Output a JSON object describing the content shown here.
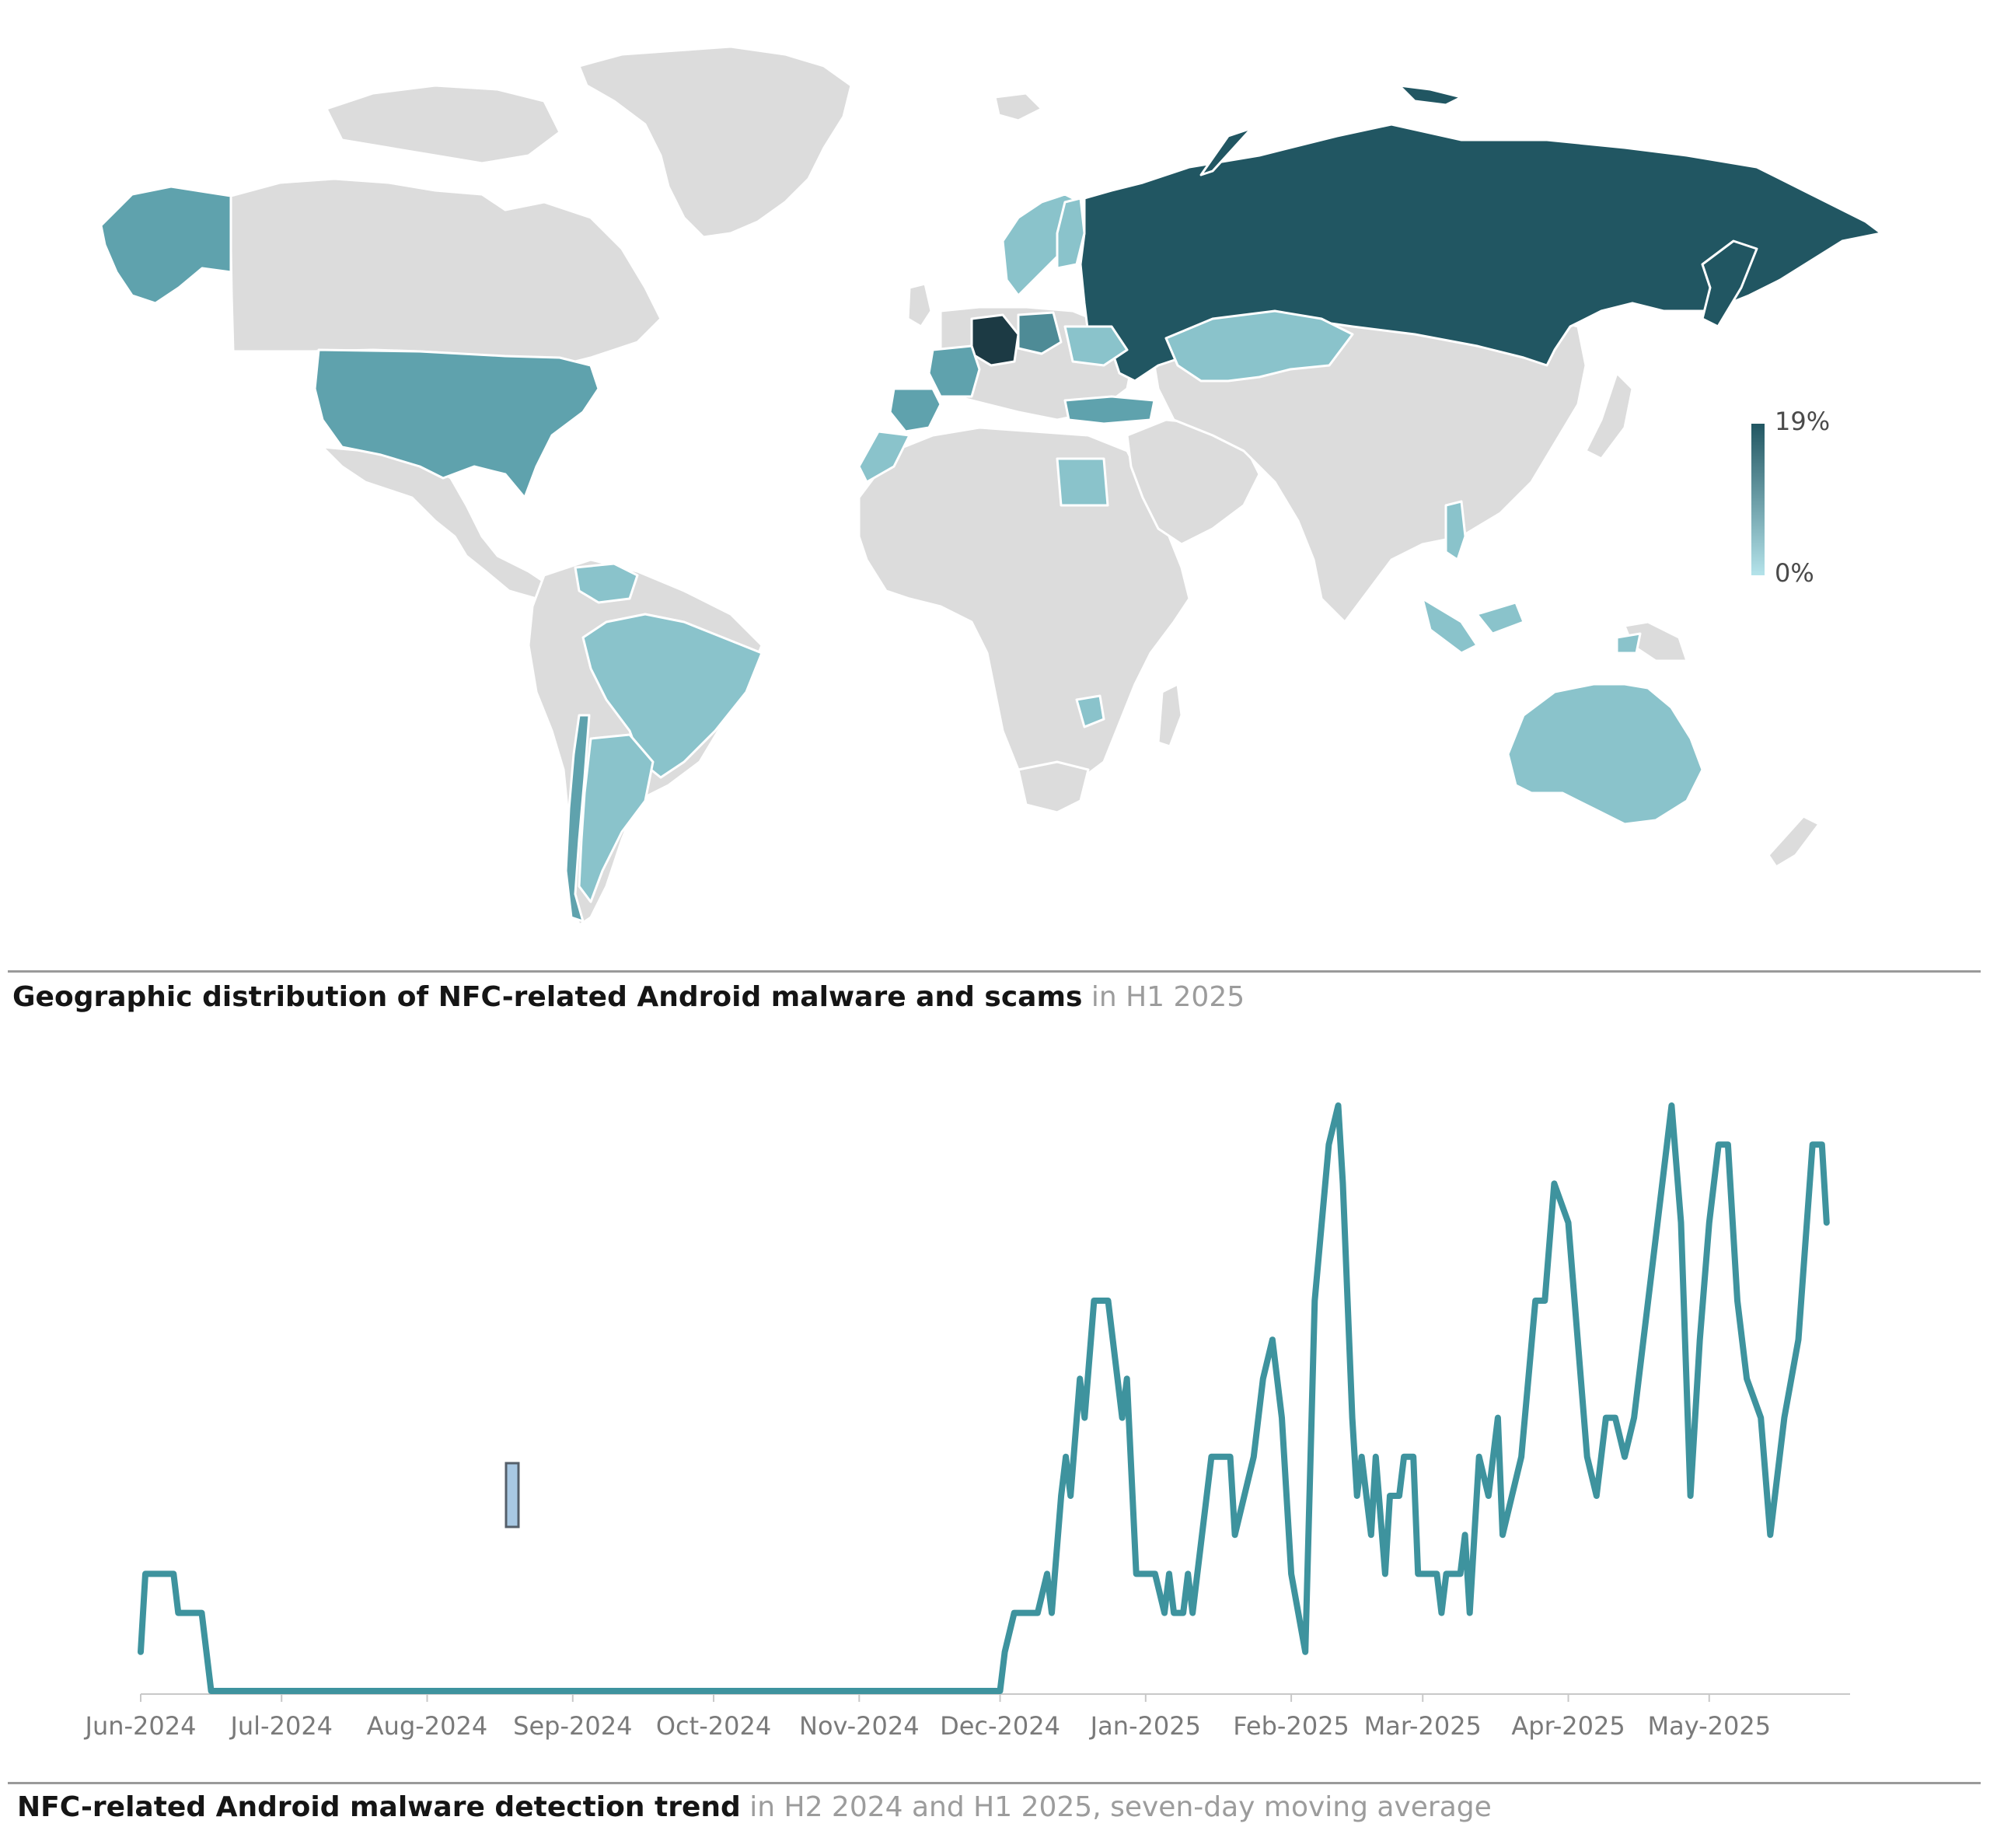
{
  "map": {
    "caption_bold": "Geographic distribution of NFC-related Android malware and scams",
    "caption_light": "in H1 2025",
    "legend": {
      "max_label": "19%",
      "min_label": "0%",
      "color_max": "#215662",
      "color_min": "#b4e3ea"
    },
    "colors": {
      "land": "#dcdcdc",
      "border": "#ffffff",
      "high": "#215662",
      "mid": "#5fa2ad",
      "low": "#8ac3cb"
    },
    "highlighted_regions": [
      "Russia",
      "Germany",
      "Poland",
      "Alaska",
      "United States",
      "France",
      "Spain",
      "Morocco",
      "Turkey",
      "Kazakhstan",
      "Egypt",
      "Brazil",
      "Argentina",
      "Chile",
      "Venezuela",
      "Australia",
      "Scandinavia",
      "Indonesia",
      "Zimbabwe"
    ]
  },
  "chart_data": {
    "type": "line",
    "title": "NFC-related Android malware detection trend",
    "subtitle": "in H2 2024 and H1 2025, seven-day moving average",
    "x_tick_labels": [
      "Jun-2024",
      "Jul-2024",
      "Aug-2024",
      "Sep-2024",
      "Oct-2024",
      "Nov-2024",
      "Dec-2024",
      "Jan-2025",
      "Feb-2025",
      "Mar-2025",
      "Apr-2025",
      "May-2025"
    ],
    "x_start": "2024-06-01",
    "x_end": "2025-05-31",
    "series": [
      {
        "color": "#3e939e",
        "points": [
          [
            "2024-06-01",
            1
          ],
          [
            "2024-06-02",
            3
          ],
          [
            "2024-06-08",
            3
          ],
          [
            "2024-06-09",
            2
          ],
          [
            "2024-06-14",
            2
          ],
          [
            "2024-06-16",
            0
          ],
          [
            "2024-12-01",
            0
          ],
          [
            "2024-12-02",
            1
          ],
          [
            "2024-12-04",
            2
          ],
          [
            "2024-12-09",
            2
          ],
          [
            "2024-12-11",
            3
          ],
          [
            "2024-12-12",
            2
          ],
          [
            "2024-12-14",
            5
          ],
          [
            "2024-12-15",
            6
          ],
          [
            "2024-12-16",
            5
          ],
          [
            "2024-12-18",
            8
          ],
          [
            "2024-12-19",
            7
          ],
          [
            "2024-12-21",
            10
          ],
          [
            "2024-12-24",
            10
          ],
          [
            "2024-12-27",
            7
          ],
          [
            "2024-12-28",
            8
          ],
          [
            "2024-12-30",
            3
          ],
          [
            "2025-01-03",
            3
          ],
          [
            "2025-01-05",
            2
          ],
          [
            "2025-01-06",
            3
          ],
          [
            "2025-01-07",
            2
          ],
          [
            "2025-01-09",
            2
          ],
          [
            "2025-01-10",
            3
          ],
          [
            "2025-01-11",
            2
          ],
          [
            "2025-01-13",
            4
          ],
          [
            "2025-01-15",
            6
          ],
          [
            "2025-01-19",
            6
          ],
          [
            "2025-01-20",
            4
          ],
          [
            "2025-01-22",
            5
          ],
          [
            "2025-01-24",
            6
          ],
          [
            "2025-01-26",
            8
          ],
          [
            "2025-01-28",
            9
          ],
          [
            "2025-01-30",
            7
          ],
          [
            "2025-02-01",
            3
          ],
          [
            "2025-02-04",
            1
          ],
          [
            "2025-02-06",
            10
          ],
          [
            "2025-02-09",
            14
          ],
          [
            "2025-02-11",
            15
          ],
          [
            "2025-02-12",
            13
          ],
          [
            "2025-02-14",
            7
          ],
          [
            "2025-02-15",
            5
          ],
          [
            "2025-02-16",
            6
          ],
          [
            "2025-02-18",
            4
          ],
          [
            "2025-02-19",
            6
          ],
          [
            "2025-02-21",
            3
          ],
          [
            "2025-02-22",
            5
          ],
          [
            "2025-02-24",
            5
          ],
          [
            "2025-02-25",
            6
          ],
          [
            "2025-02-27",
            6
          ],
          [
            "2025-02-28",
            3
          ],
          [
            "2025-03-04",
            3
          ],
          [
            "2025-03-05",
            2
          ],
          [
            "2025-03-06",
            3
          ],
          [
            "2025-03-09",
            3
          ],
          [
            "2025-03-10",
            4
          ],
          [
            "2025-03-11",
            2
          ],
          [
            "2025-03-13",
            6
          ],
          [
            "2025-03-15",
            5
          ],
          [
            "2025-03-17",
            7
          ],
          [
            "2025-03-18",
            4
          ],
          [
            "2025-03-20",
            5
          ],
          [
            "2025-03-22",
            6
          ],
          [
            "2025-03-25",
            10
          ],
          [
            "2025-03-27",
            10
          ],
          [
            "2025-03-29",
            13
          ],
          [
            "2025-04-01",
            12
          ],
          [
            "2025-04-03",
            9
          ],
          [
            "2025-04-05",
            6
          ],
          [
            "2025-04-07",
            5
          ],
          [
            "2025-04-09",
            7
          ],
          [
            "2025-04-11",
            7
          ],
          [
            "2025-04-13",
            6
          ],
          [
            "2025-04-15",
            7
          ],
          [
            "2025-04-17",
            9
          ],
          [
            "2025-04-19",
            11
          ],
          [
            "2025-04-21",
            13
          ],
          [
            "2025-04-23",
            15
          ],
          [
            "2025-04-25",
            12
          ],
          [
            "2025-04-27",
            5
          ],
          [
            "2025-04-29",
            9
          ],
          [
            "2025-05-01",
            12
          ],
          [
            "2025-05-03",
            14
          ],
          [
            "2025-05-05",
            14
          ],
          [
            "2025-05-07",
            10
          ],
          [
            "2025-05-09",
            8
          ],
          [
            "2025-05-12",
            7
          ],
          [
            "2025-05-14",
            4
          ],
          [
            "2025-05-17",
            7
          ],
          [
            "2025-05-20",
            9
          ],
          [
            "2025-05-23",
            14
          ],
          [
            "2025-05-25",
            14
          ],
          [
            "2025-05-26",
            12
          ]
        ]
      }
    ],
    "grid": false,
    "legend": "none"
  },
  "marker": {
    "color": "#a8c8e3",
    "stroke": "#555f6a"
  }
}
